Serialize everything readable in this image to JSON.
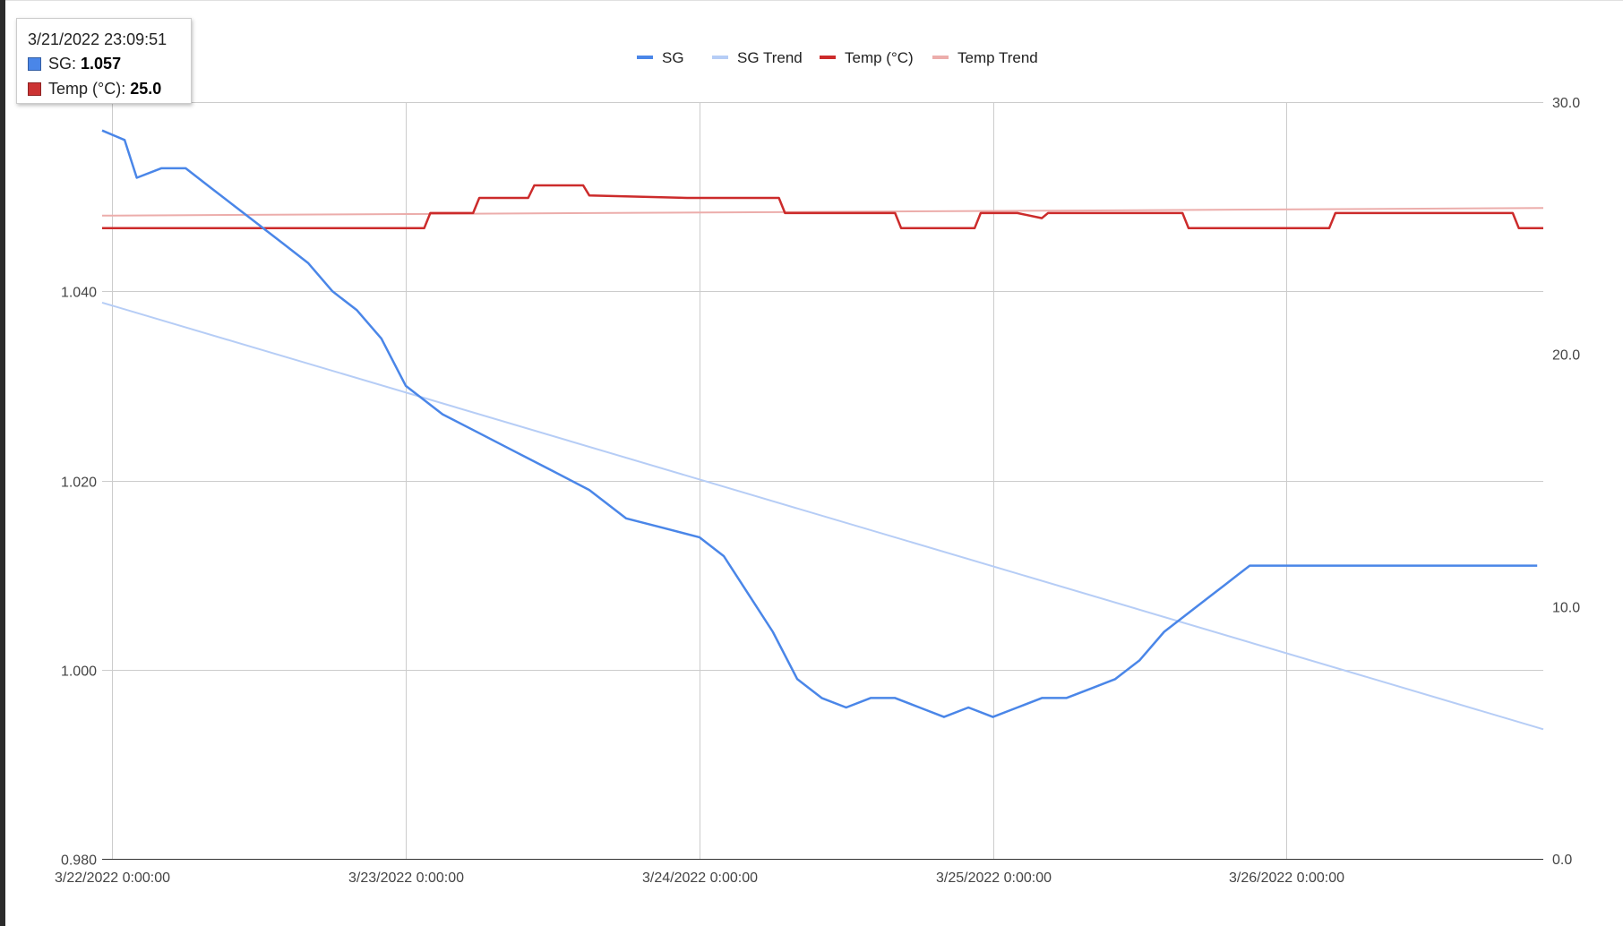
{
  "tooltip": {
    "title": "3/21/2022 23:09:51",
    "rows": [
      {
        "name": "SG",
        "value": "1.057",
        "color": "#4a86e8"
      },
      {
        "name": "Temp (°C)",
        "value": "25.0",
        "color": "#cc3333"
      }
    ]
  },
  "colors": {
    "sg": "#4a86e8",
    "sg_trend": "#b6cdf6",
    "temp": "#cc2b2b",
    "temp_trend": "#ecadab",
    "grid": "#cccccc",
    "left_strip": "#2b2b2b"
  },
  "chart_data": {
    "type": "line",
    "title": "",
    "legend": {
      "position": "top",
      "items": [
        "SG",
        "SG Trend",
        "Temp (°C)",
        "Temp Trend"
      ]
    },
    "x_axis": {
      "type": "datetime",
      "range": [
        "3/21/2022 23:09:51",
        "3/26/2022 21:00:00"
      ],
      "ticks": [
        "3/22/2022 0:00:00",
        "3/23/2022 0:00:00",
        "3/24/2022 0:00:00",
        "3/25/2022 0:00:00",
        "3/26/2022 0:00:00"
      ],
      "grid": true
    },
    "y_axis_left": {
      "label": "",
      "range": [
        0.98,
        1.06
      ],
      "ticks": [
        "0.980",
        "1.000",
        "1.020",
        "1.040"
      ],
      "grid": true
    },
    "y_axis_right": {
      "label": "",
      "range": [
        0,
        30
      ],
      "ticks": [
        "0.0",
        "10.0",
        "20.0",
        "30.0"
      ]
    },
    "series": [
      {
        "name": "SG",
        "axis": "left",
        "color": "#4a86e8",
        "x": [
          "3/21/2022 23:09:51",
          "3/22/2022 1:00:00",
          "3/22/2022 2:00:00",
          "3/22/2022 4:00:00",
          "3/22/2022 6:00:00",
          "3/22/2022 8:00:00",
          "3/22/2022 10:00:00",
          "3/22/2022 12:00:00",
          "3/22/2022 14:00:00",
          "3/22/2022 16:00:00",
          "3/22/2022 18:00:00",
          "3/22/2022 20:00:00",
          "3/22/2022 22:00:00",
          "3/23/2022 0:00:00",
          "3/23/2022 3:00:00",
          "3/23/2022 6:00:00",
          "3/23/2022 9:00:00",
          "3/23/2022 12:00:00",
          "3/23/2022 15:00:00",
          "3/23/2022 18:00:00",
          "3/23/2022 21:00:00",
          "3/24/2022 0:00:00",
          "3/24/2022 2:00:00",
          "3/24/2022 4:00:00",
          "3/24/2022 6:00:00",
          "3/24/2022 8:00:00",
          "3/24/2022 10:00:00",
          "3/24/2022 12:00:00",
          "3/24/2022 14:00:00",
          "3/24/2022 16:00:00",
          "3/24/2022 18:00:00",
          "3/24/2022 20:00:00",
          "3/24/2022 22:00:00",
          "3/25/2022 0:00:00",
          "3/25/2022 2:00:00",
          "3/25/2022 4:00:00",
          "3/25/2022 6:00:00",
          "3/25/2022 8:00:00",
          "3/25/2022 10:00:00",
          "3/25/2022 12:00:00",
          "3/25/2022 14:00:00",
          "3/25/2022 16:00:00",
          "3/25/2022 18:00:00",
          "3/25/2022 19:00:00",
          "3/25/2022 20:00:00",
          "3/25/2022 21:00:00",
          "3/25/2022 22:00:00",
          "3/26/2022 0:00:00",
          "3/26/2022 2:00:00",
          "3/26/2022 6:00:00",
          "3/26/2022 12:00:00",
          "3/26/2022 18:00:00",
          "3/26/2022 20:30:00"
        ],
        "y": [
          1.057,
          1.056,
          1.052,
          1.053,
          1.053,
          1.051,
          1.049,
          1.047,
          1.045,
          1.043,
          1.04,
          1.038,
          1.035,
          1.03,
          1.027,
          1.025,
          1.023,
          1.021,
          1.019,
          1.016,
          1.015,
          1.014,
          1.012,
          1.008,
          1.004,
          0.999,
          0.997,
          0.996,
          0.997,
          0.997,
          0.996,
          0.995,
          0.996,
          0.995,
          0.996,
          0.997,
          0.997,
          0.998,
          0.999,
          1.001,
          1.004,
          1.006,
          1.008,
          1.009,
          1.01,
          1.011,
          1.011,
          1.011,
          1.011,
          1.011,
          1.011,
          1.011,
          1.011
        ]
      },
      {
        "name": "SG Trend",
        "axis": "left",
        "color": "#b6cdf6",
        "x": [
          "3/21/2022 23:09:51",
          "3/26/2022 21:00:00"
        ],
        "y": [
          1.0388,
          0.9937
        ]
      },
      {
        "name": "Temp (°C)",
        "axis": "right",
        "color": "#cc2b2b",
        "x": [
          "3/21/2022 23:09:51",
          "3/22/2022 21:00:00",
          "3/23/2022 0:00:00",
          "3/23/2022 1:30:00",
          "3/23/2022 2:00:00",
          "3/23/2022 5:30:00",
          "3/23/2022 6:00:00",
          "3/23/2022 10:00:00",
          "3/23/2022 10:30:00",
          "3/23/2022 14:30:00",
          "3/23/2022 15:00:00",
          "3/23/2022 23:00:00",
          "3/24/2022 6:30:00",
          "3/24/2022 7:00:00",
          "3/24/2022 16:00:00",
          "3/24/2022 16:30:00",
          "3/24/2022 22:30:00",
          "3/24/2022 23:00:00",
          "3/25/2022 2:00:00",
          "3/25/2022 4:00:00",
          "3/25/2022 4:30:00",
          "3/25/2022 5:00:00",
          "3/25/2022 15:30:00",
          "3/25/2022 16:00:00",
          "3/26/2022 3:30:00",
          "3/26/2022 4:00:00",
          "3/26/2022 18:30:00",
          "3/26/2022 19:00:00",
          "3/26/2022 21:00:00"
        ],
        "y": [
          25.0,
          25.0,
          25.0,
          25.0,
          25.6,
          25.6,
          26.2,
          26.2,
          26.7,
          26.7,
          26.3,
          26.2,
          26.2,
          25.6,
          25.6,
          25.0,
          25.0,
          25.6,
          25.6,
          25.4,
          25.6,
          25.6,
          25.6,
          25.0,
          25.0,
          25.6,
          25.6,
          25.0,
          25.0
        ]
      },
      {
        "name": "Temp Trend",
        "axis": "right",
        "color": "#ecadab",
        "x": [
          "3/21/2022 23:09:51",
          "3/26/2022 21:00:00"
        ],
        "y": [
          25.5,
          25.8
        ]
      }
    ]
  }
}
